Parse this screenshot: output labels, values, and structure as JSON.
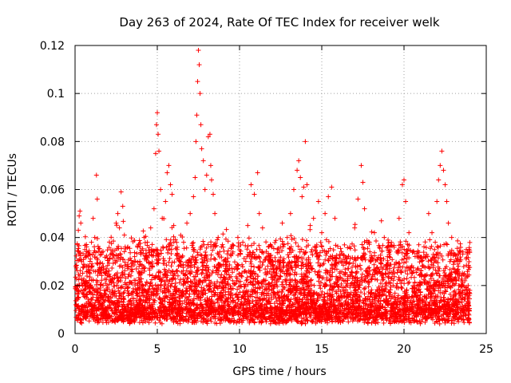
{
  "chart_data": {
    "type": "scatter",
    "title": "Day 263 of 2024, Rate Of TEC Index for receiver welk",
    "xlabel": "GPS time / hours",
    "ylabel": "ROTI / TECUs",
    "xlim": [
      0,
      25
    ],
    "ylim": [
      0,
      0.12
    ],
    "x_ticks": [
      0,
      5,
      10,
      15,
      20,
      25
    ],
    "x_tick_labels": [
      "0",
      "5",
      "10",
      "15",
      "20",
      "25"
    ],
    "y_ticks": [
      0,
      0.02,
      0.04,
      0.06,
      0.08,
      0.1,
      0.12
    ],
    "y_tick_labels": [
      "0",
      "0.02",
      "0.04",
      "0.06",
      "0.08",
      "0.1",
      "0.12"
    ],
    "grid": true,
    "marker": "+",
    "series": [
      {
        "name": "ROTI",
        "color": "#ff0000",
        "points": [
          [
            0.05,
            0.012
          ],
          [
            0.15,
            0.018
          ],
          [
            0.2,
            0.043
          ],
          [
            0.25,
            0.049
          ],
          [
            0.3,
            0.051
          ],
          [
            0.35,
            0.046
          ],
          [
            0.4,
            0.03
          ],
          [
            0.5,
            0.022
          ],
          [
            0.6,
            0.035
          ],
          [
            0.7,
            0.028
          ],
          [
            0.8,
            0.026
          ],
          [
            0.9,
            0.033
          ],
          [
            1.0,
            0.038
          ],
          [
            1.1,
            0.048
          ],
          [
            1.2,
            0.04
          ],
          [
            1.3,
            0.066
          ],
          [
            1.35,
            0.056
          ],
          [
            1.5,
            0.025
          ],
          [
            1.7,
            0.02
          ],
          [
            1.9,
            0.027
          ],
          [
            2.1,
            0.031
          ],
          [
            2.3,
            0.034
          ],
          [
            2.5,
            0.046
          ],
          [
            2.6,
            0.05
          ],
          [
            2.7,
            0.044
          ],
          [
            2.8,
            0.059
          ],
          [
            2.9,
            0.053
          ],
          [
            3.0,
            0.041
          ],
          [
            3.2,
            0.028
          ],
          [
            3.4,
            0.024
          ],
          [
            3.6,
            0.03
          ],
          [
            3.8,
            0.036
          ],
          [
            4.0,
            0.033
          ],
          [
            4.2,
            0.04
          ],
          [
            4.4,
            0.038
          ],
          [
            4.6,
            0.044
          ],
          [
            4.8,
            0.052
          ],
          [
            4.9,
            0.075
          ],
          [
            4.95,
            0.087
          ],
          [
            5.0,
            0.092
          ],
          [
            5.05,
            0.083
          ],
          [
            5.1,
            0.076
          ],
          [
            5.2,
            0.06
          ],
          [
            5.3,
            0.048
          ],
          [
            5.5,
            0.055
          ],
          [
            5.6,
            0.067
          ],
          [
            5.7,
            0.07
          ],
          [
            5.8,
            0.062
          ],
          [
            5.9,
            0.058
          ],
          [
            6.0,
            0.045
          ],
          [
            6.2,
            0.035
          ],
          [
            6.4,
            0.032
          ],
          [
            6.6,
            0.038
          ],
          [
            6.8,
            0.046
          ],
          [
            7.0,
            0.05
          ],
          [
            7.2,
            0.057
          ],
          [
            7.3,
            0.065
          ],
          [
            7.35,
            0.08
          ],
          [
            7.4,
            0.091
          ],
          [
            7.45,
            0.105
          ],
          [
            7.5,
            0.118
          ],
          [
            7.55,
            0.112
          ],
          [
            7.6,
            0.1
          ],
          [
            7.65,
            0.087
          ],
          [
            7.7,
            0.077
          ],
          [
            7.8,
            0.072
          ],
          [
            7.9,
            0.06
          ],
          [
            8.0,
            0.066
          ],
          [
            8.1,
            0.082
          ],
          [
            8.2,
            0.083
          ],
          [
            8.25,
            0.07
          ],
          [
            8.3,
            0.064
          ],
          [
            8.4,
            0.058
          ],
          [
            8.5,
            0.05
          ],
          [
            8.7,
            0.04
          ],
          [
            9.0,
            0.036
          ],
          [
            9.3,
            0.03
          ],
          [
            9.6,
            0.034
          ],
          [
            9.9,
            0.04
          ],
          [
            10.2,
            0.038
          ],
          [
            10.5,
            0.045
          ],
          [
            10.7,
            0.062
          ],
          [
            10.9,
            0.058
          ],
          [
            11.1,
            0.067
          ],
          [
            11.2,
            0.05
          ],
          [
            11.4,
            0.044
          ],
          [
            11.7,
            0.032
          ],
          [
            12.0,
            0.028
          ],
          [
            12.3,
            0.035
          ],
          [
            12.6,
            0.046
          ],
          [
            12.9,
            0.04
          ],
          [
            13.1,
            0.05
          ],
          [
            13.3,
            0.06
          ],
          [
            13.5,
            0.068
          ],
          [
            13.6,
            0.072
          ],
          [
            13.7,
            0.065
          ],
          [
            13.8,
            0.057
          ],
          [
            13.9,
            0.061
          ],
          [
            14.0,
            0.08
          ],
          [
            14.1,
            0.062
          ],
          [
            14.3,
            0.045
          ],
          [
            14.5,
            0.048
          ],
          [
            14.8,
            0.055
          ],
          [
            15.0,
            0.042
          ],
          [
            15.2,
            0.05
          ],
          [
            15.4,
            0.057
          ],
          [
            15.6,
            0.061
          ],
          [
            15.8,
            0.048
          ],
          [
            16.1,
            0.033
          ],
          [
            16.4,
            0.03
          ],
          [
            16.7,
            0.036
          ],
          [
            17.0,
            0.044
          ],
          [
            17.2,
            0.056
          ],
          [
            17.4,
            0.07
          ],
          [
            17.5,
            0.063
          ],
          [
            17.6,
            0.052
          ],
          [
            17.9,
            0.038
          ],
          [
            18.2,
            0.042
          ],
          [
            18.5,
            0.036
          ],
          [
            18.8,
            0.04
          ],
          [
            19.1,
            0.033
          ],
          [
            19.4,
            0.036
          ],
          [
            19.7,
            0.048
          ],
          [
            19.9,
            0.062
          ],
          [
            20.0,
            0.064
          ],
          [
            20.1,
            0.055
          ],
          [
            20.3,
            0.042
          ],
          [
            20.6,
            0.034
          ],
          [
            20.9,
            0.037
          ],
          [
            21.2,
            0.032
          ],
          [
            21.5,
            0.05
          ],
          [
            21.7,
            0.042
          ],
          [
            21.9,
            0.038
          ],
          [
            22.0,
            0.055
          ],
          [
            22.1,
            0.064
          ],
          [
            22.2,
            0.07
          ],
          [
            22.3,
            0.076
          ],
          [
            22.4,
            0.068
          ],
          [
            22.5,
            0.062
          ],
          [
            22.6,
            0.055
          ],
          [
            22.7,
            0.046
          ],
          [
            22.9,
            0.04
          ],
          [
            23.1,
            0.033
          ],
          [
            23.3,
            0.028
          ],
          [
            23.5,
            0.024
          ],
          [
            23.7,
            0.022
          ],
          [
            23.9,
            0.02
          ],
          [
            24.0,
            0.018
          ]
        ]
      }
    ]
  }
}
